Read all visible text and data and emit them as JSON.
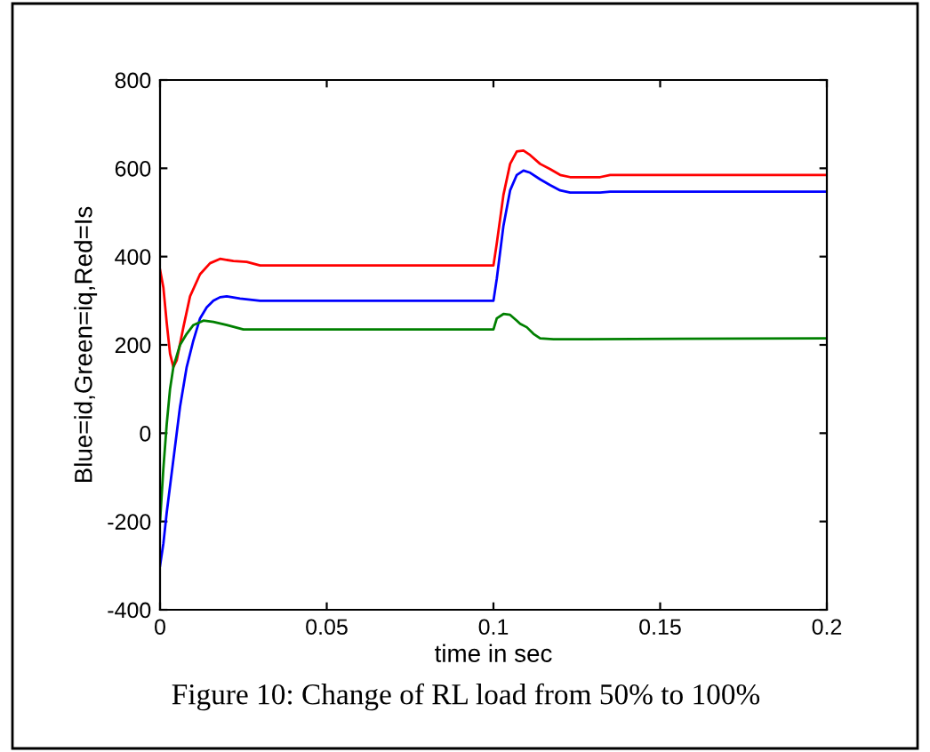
{
  "chart_data": {
    "type": "line",
    "ylabel": "Blue=id,Green=iq,Red=Is",
    "xlabel": "time in sec",
    "annotations": [
      "Figure 10: Change of RL load from 50% to 100%"
    ],
    "xlim": [
      0,
      0.2
    ],
    "ylim": [
      -400,
      800
    ],
    "xticks": [
      0,
      0.05,
      0.1,
      0.15,
      0.2
    ],
    "yticks": [
      -400,
      -200,
      0,
      200,
      400,
      600,
      800
    ],
    "grid": false,
    "legend": false,
    "series": [
      {
        "color": "#ff0000",
        "x": [
          0,
          0.001,
          0.002,
          0.003,
          0.004,
          0.005,
          0.007,
          0.009,
          0.012,
          0.015,
          0.018,
          0.022,
          0.026,
          0.03,
          0.06,
          0.099,
          0.1,
          0.101,
          0.103,
          0.105,
          0.107,
          0.109,
          0.111,
          0.114,
          0.117,
          0.12,
          0.123,
          0.128,
          0.132,
          0.135,
          0.2
        ],
        "values": [
          370,
          330,
          250,
          180,
          150,
          165,
          240,
          310,
          360,
          385,
          395,
          390,
          388,
          380,
          380,
          380,
          380,
          430,
          540,
          610,
          638,
          640,
          630,
          610,
          598,
          585,
          580,
          580,
          580,
          585,
          585
        ]
      },
      {
        "color": "#0000ff",
        "x": [
          0,
          0.001,
          0.002,
          0.004,
          0.006,
          0.008,
          0.01,
          0.012,
          0.014,
          0.016,
          0.018,
          0.02,
          0.024,
          0.03,
          0.06,
          0.099,
          0.1,
          0.101,
          0.103,
          0.105,
          0.107,
          0.109,
          0.111,
          0.114,
          0.117,
          0.12,
          0.123,
          0.128,
          0.132,
          0.135,
          0.2
        ],
        "values": [
          -300,
          -250,
          -180,
          -60,
          60,
          150,
          210,
          260,
          285,
          300,
          308,
          310,
          305,
          300,
          300,
          300,
          300,
          350,
          470,
          550,
          585,
          595,
          590,
          575,
          562,
          550,
          545,
          545,
          545,
          547,
          547
        ]
      },
      {
        "color": "#008000",
        "x": [
          0,
          0.001,
          0.002,
          0.003,
          0.004,
          0.006,
          0.008,
          0.01,
          0.013,
          0.016,
          0.02,
          0.025,
          0.03,
          0.06,
          0.099,
          0.1,
          0.101,
          0.103,
          0.105,
          0.107,
          0.108,
          0.11,
          0.112,
          0.114,
          0.118,
          0.128,
          0.2
        ],
        "values": [
          -200,
          -80,
          20,
          100,
          150,
          200,
          225,
          245,
          255,
          252,
          245,
          235,
          235,
          235,
          235,
          235,
          260,
          270,
          268,
          255,
          248,
          240,
          225,
          215,
          213,
          213,
          215
        ]
      }
    ]
  }
}
